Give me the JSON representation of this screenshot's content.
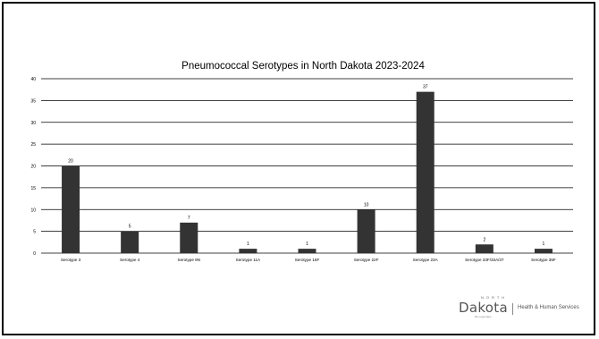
{
  "chart_data": {
    "type": "bar",
    "title": "Pneumococcal Serotypes in North Dakota 2023-2024",
    "categories": [
      "Serotype 3",
      "Serotype 4",
      "Serotype 9N",
      "Serotype 11A",
      "Serotype 16F",
      "Serotype 22F",
      "Serotype 23A",
      "Serotype 33F/33A/37",
      "Serotype 35F"
    ],
    "values": [
      20,
      5,
      7,
      1,
      1,
      10,
      37,
      2,
      1
    ],
    "xlabel": "",
    "ylabel": "",
    "ylim": [
      0,
      40
    ],
    "yticks": [
      0,
      5,
      10,
      15,
      20,
      25,
      30,
      35,
      40
    ],
    "grid": true,
    "legend": "none",
    "data_labels": true,
    "colors": {
      "bar": "#333333",
      "grid": "#000000",
      "text": "#000000"
    }
  },
  "logo": {
    "north": "NORTH",
    "dakota": "Dakota",
    "dept": "Health & Human Services",
    "tagline": "Be Legendary"
  }
}
